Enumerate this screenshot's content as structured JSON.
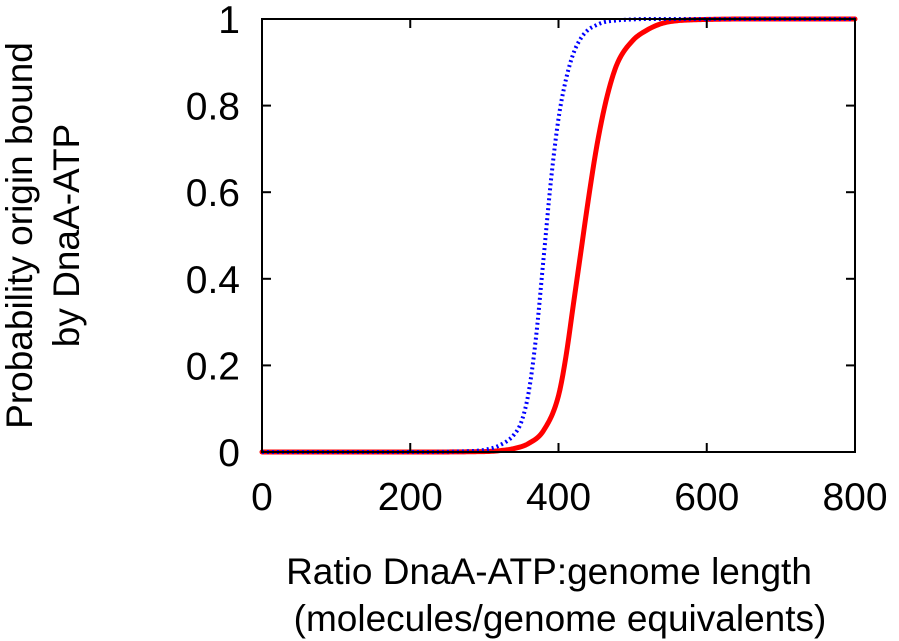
{
  "chart_data": {
    "type": "line",
    "title": "",
    "xlabel": [
      "Ratio DnaA-ATP:genome length",
      "(molecules/genome equivalents)"
    ],
    "ylabel": [
      "Probability origin bound",
      "by DnaA-ATP"
    ],
    "xlim": [
      0,
      800
    ],
    "ylim": [
      0,
      1
    ],
    "x_ticks": [
      "0",
      "200",
      "400",
      "600",
      "800"
    ],
    "y_ticks": [
      "0",
      "0.2",
      "0.4",
      "0.6",
      "0.8",
      "1"
    ],
    "grid": false,
    "legend": "none",
    "series": [
      {
        "color": "#ff0000",
        "style": "solid",
        "x": [
          0,
          200,
          300,
          320,
          340,
          360,
          380,
          400,
          410,
          420,
          430,
          440,
          450,
          460,
          470,
          480,
          500,
          520,
          540,
          560,
          580,
          600,
          650,
          700,
          800
        ],
        "y": [
          0,
          0,
          0.001,
          0.003,
          0.008,
          0.02,
          0.05,
          0.13,
          0.22,
          0.34,
          0.46,
          0.58,
          0.69,
          0.78,
          0.85,
          0.9,
          0.95,
          0.975,
          0.99,
          0.996,
          0.998,
          0.999,
          1,
          1,
          1
        ]
      },
      {
        "color": "#0000ff",
        "style": "dotted",
        "x": [
          0,
          200,
          280,
          300,
          320,
          340,
          350,
          360,
          370,
          380,
          390,
          400,
          410,
          420,
          430,
          440,
          450,
          460,
          480,
          500,
          520,
          540,
          560,
          600,
          700,
          800
        ],
        "y": [
          0,
          0,
          0.002,
          0.005,
          0.015,
          0.04,
          0.07,
          0.14,
          0.27,
          0.45,
          0.63,
          0.77,
          0.86,
          0.92,
          0.955,
          0.975,
          0.985,
          0.992,
          0.997,
          0.999,
          1,
          1,
          1,
          1,
          1,
          1
        ]
      }
    ]
  }
}
